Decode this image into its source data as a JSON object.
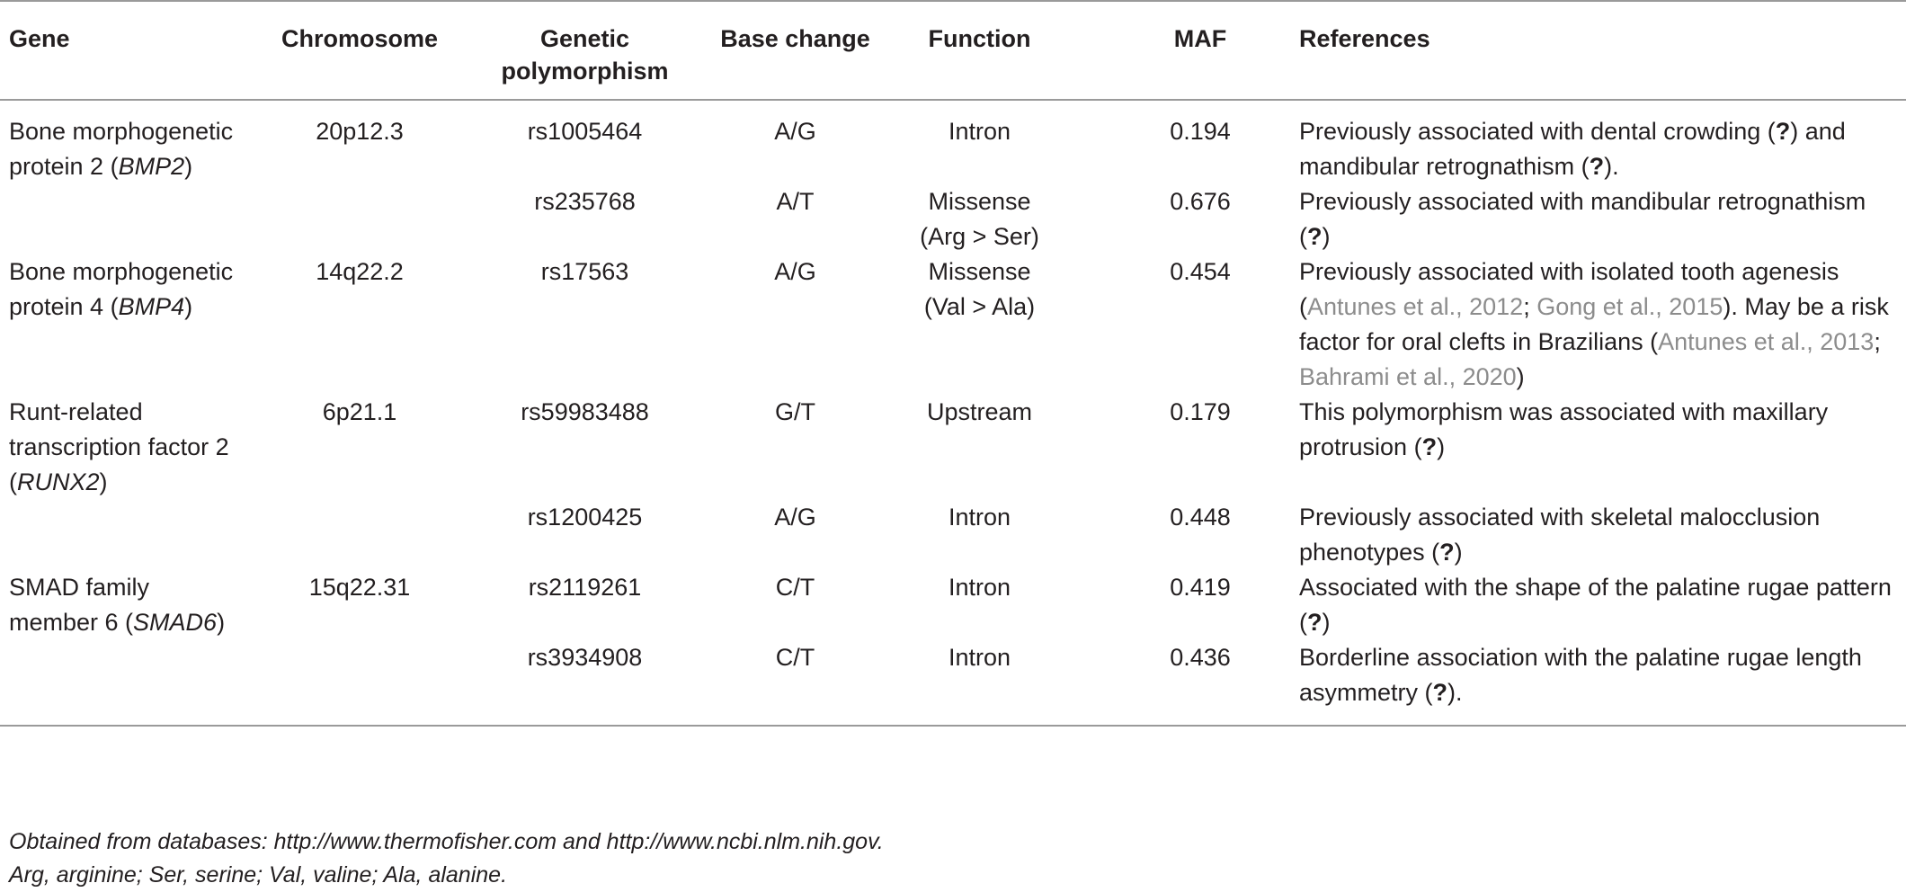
{
  "table": {
    "headers": {
      "gene": "Gene",
      "chromosome": "Chromosome",
      "polymorphism_line1": "Genetic",
      "polymorphism_line2": "polymorphism",
      "base_change": "Base change",
      "function": "Function",
      "maf": "MAF",
      "references": "References"
    },
    "rows": [
      {
        "gene_pre": "Bone morphogenetic protein 2 (",
        "gene_sym": "BMP2",
        "gene_post": ")",
        "chromosome": "20p12.3",
        "polymorphism": "rs1005464",
        "base_change": "A/G",
        "function_l1": "Intron",
        "function_l2": "",
        "maf": "0.194",
        "ref_a": "Previously associated with dental crowding (",
        "q1": "?",
        "ref_b": ") and mandibular retrognathism (",
        "q2": "?",
        "ref_c": ")."
      },
      {
        "polymorphism": "rs235768",
        "base_change": "A/T",
        "function_l1": "Missense",
        "function_l2": "(Arg > Ser)",
        "maf": "0.676",
        "ref_a": "Previously associated with mandibular retrognathism (",
        "q1": "?",
        "ref_b": ")"
      },
      {
        "gene_pre": "Bone morphogenetic protein 4 (",
        "gene_sym": "BMP4",
        "gene_post": ")",
        "chromosome": "14q22.2",
        "polymorphism": "rs17563",
        "base_change": "A/G",
        "function_l1": "Missense",
        "function_l2": "(Val > Ala)",
        "maf": "0.454",
        "ref_a": "Previously associated with isolated tooth agenesis (",
        "cite1": "Antunes et al., 2012",
        "sep1": "; ",
        "cite2": "Gong et al., 2015",
        "ref_b": "). May be a risk factor for oral clefts in Brazilians (",
        "cite3": "Antunes et al., 2013",
        "sep2": "; ",
        "cite4": "Bahrami et al., 2020",
        "ref_c": ")"
      },
      {
        "gene_pre": "Runt-related transcription factor 2 (",
        "gene_sym": "RUNX2",
        "gene_post": ")",
        "chromosome": "6p21.1",
        "polymorphism": "rs59983488",
        "base_change": "G/T",
        "function_l1": "Upstream",
        "function_l2": "",
        "maf": "0.179",
        "ref_a": "This polymorphism was associated with maxillary protrusion (",
        "q1": "?",
        "ref_b": ")"
      },
      {
        "polymorphism": "rs1200425",
        "base_change": "A/G",
        "function_l1": "Intron",
        "function_l2": "",
        "maf": "0.448",
        "ref_a": "Previously associated with skeletal malocclusion phenotypes (",
        "q1": "?",
        "ref_b": ")"
      },
      {
        "gene_pre": "SMAD family member 6 (",
        "gene_sym": "SMAD6",
        "gene_post": ")",
        "chromosome": "15q22.31",
        "polymorphism": "rs2119261",
        "base_change": "C/T",
        "function_l1": "Intron",
        "function_l2": "",
        "maf": "0.419",
        "ref_a": "Associated with the shape of the palatine rugae pattern (",
        "q1": "?",
        "ref_b": ")"
      },
      {
        "polymorphism": "rs3934908",
        "base_change": "C/T",
        "function_l1": "Intron",
        "function_l2": "",
        "maf": "0.436",
        "ref_a": "Borderline association with the palatine rugae length asymmetry (",
        "q1": "?",
        "ref_b": ")."
      }
    ]
  },
  "footnotes": {
    "line1": "Obtained from databases: http://www.thermofisher.com and http://www.ncbi.nlm.nih.gov.",
    "line2": "Arg, arginine; Ser, serine; Val, valine; Ala, alanine."
  }
}
